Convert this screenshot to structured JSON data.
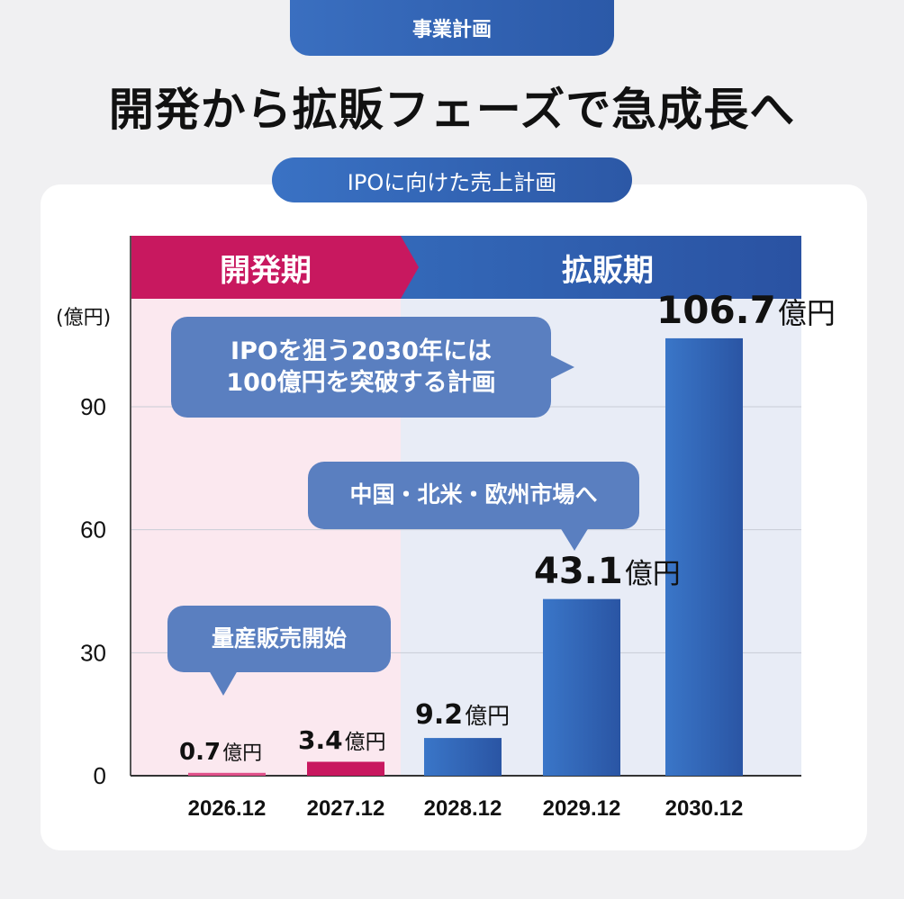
{
  "header": {
    "badge": "事業計画",
    "title": "開発から拡販フェーズで急成長へ"
  },
  "subtitle": "IPOに向けた売上計画",
  "phases": {
    "dev": "開発期",
    "sales": "拡販期"
  },
  "callouts": {
    "ipo_line1": "IPOを狙う2030年には",
    "ipo_line2": "100億円を突破する計画",
    "market": "中国・北米・欧州市場へ",
    "mass": "量産販売開始"
  },
  "colors": {
    "dev": "#c8185f",
    "sales": "#2f5fb0",
    "dev_bg": "#fbe8ef",
    "sales_bg": "#e8ecf6"
  },
  "chart_data": {
    "type": "bar",
    "ylabel": "(億円)",
    "ylim": [
      0,
      115
    ],
    "yticks": [
      0,
      30,
      60,
      90
    ],
    "ytick_labels": [
      "0",
      "30",
      "60",
      "90"
    ],
    "categories": [
      "2026.12",
      "2027.12",
      "2028.12",
      "2029.12",
      "2030.12"
    ],
    "values": [
      0.7,
      3.4,
      9.2,
      43.1,
      106.7
    ],
    "value_labels": [
      "0.7",
      "3.4",
      "9.2",
      "43.1",
      "106.7"
    ],
    "unit": "億円",
    "phase": [
      "dev",
      "dev",
      "sales",
      "sales",
      "sales"
    ]
  }
}
